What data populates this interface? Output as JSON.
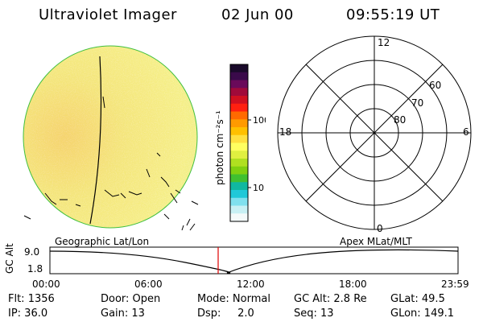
{
  "header": {
    "instrument": "Ultraviolet Imager",
    "date": "02 Jun 00",
    "time": "09:55:19 UT"
  },
  "colorbar": {
    "unit_label": "photon cm⁻²s⁻¹",
    "ticks": [
      "100",
      "10"
    ],
    "colors": [
      "#1a0a2a",
      "#3a0a4a",
      "#6a0a5a",
      "#a00a3a",
      "#d01020",
      "#ff2010",
      "#ff6a00",
      "#ff9a00",
      "#ffc000",
      "#ffe040",
      "#ffff60",
      "#e0f040",
      "#b0e020",
      "#80d010",
      "#40c030",
      "#10b8a0",
      "#20c8d8",
      "#80e0ee",
      "#c8f0f4",
      "#f4fafa"
    ]
  },
  "polar_grid": {
    "mlt_labels": [
      "12",
      "18",
      "6",
      "0"
    ],
    "lat_labels": [
      "60",
      "70",
      "80"
    ]
  },
  "altitude_plot": {
    "left_title": "Geographic Lat/Lon",
    "right_title": "Apex MLat/MLT",
    "ylabel": "GC Alt",
    "y_ticks": [
      "9.0",
      "1.8"
    ],
    "x_ticks": [
      "00:00",
      "06:00",
      "12:00",
      "18:00",
      "23:59"
    ],
    "marker_time": "09:55"
  },
  "footer": {
    "flt": "Flt: 1356",
    "door": "Door: Open",
    "mode": "Mode: Normal",
    "gc_alt": "GC Alt: 2.8 Re",
    "glat": "GLat:  49.5",
    "ip": "IP: 36.0",
    "gain": "Gain: 13",
    "dsp": "Dsp:     2.0",
    "seq": "Seq: 13",
    "glon": "GLon: 149.1"
  },
  "style": {
    "marker_color": "#e00000",
    "disk_base": "#f6e66a",
    "limb_color": "#40c040"
  }
}
